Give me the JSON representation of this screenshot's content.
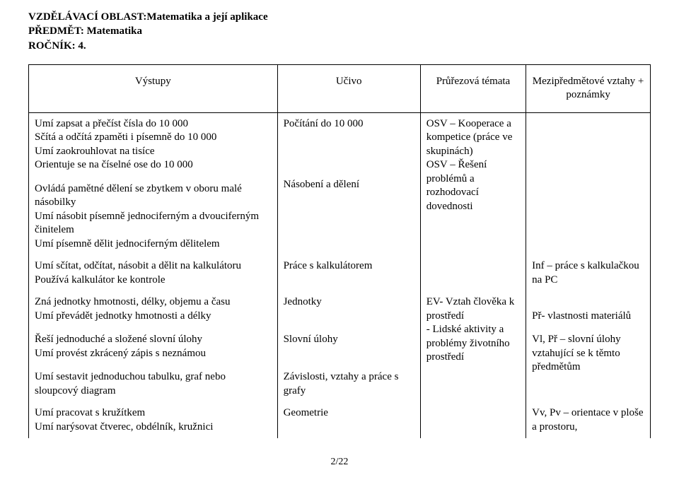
{
  "header": {
    "area_label": "VZDĚLÁVACÍ OBLAST:",
    "area_value": "Matematika a její aplikace",
    "subject_label": "PŘEDMĚT:",
    "subject_value": "Matematika",
    "grade_label": "ROČNÍK:",
    "grade_value": "4."
  },
  "columns": {
    "outcomes": "Výstupy",
    "content": "Učivo",
    "cross_topics": "Průřezová témata",
    "interdisciplinary": "Mezipředmětové vztahy + poznámky"
  },
  "rows": [
    {
      "outcomes": "Umí zapsat a přečíst čísla do 10 000\nSčítá a odčítá zpaměti i písemně do 10 000\nUmí zaokrouhlovat na tisíce\nOrientuje se na číselné ose do 10 000\n\nOvládá pamětné dělení se zbytkem v oboru malé násobilky\nUmí násobit písemně jednociferným a dvouciferným činitelem\nUmí písemně dělit jednociferným dělitelem",
      "content": "Počítání do 10 000\n\n\n\n\nNásobení a dělení",
      "cross": "OSV – Kooperace a kompetice (práce ve skupinách)\nOSV – Řešení problémů a rozhodovací dovednosti",
      "inter": ""
    },
    {
      "outcomes": "Umí sčítat, odčítat, násobit a dělit na kalkulátoru\nPoužívá kalkulátor ke kontrole",
      "content": "Práce s kalkulátorem",
      "cross": "",
      "inter": "Inf – práce s kalkulačkou na PC"
    },
    {
      "outcomes": "Zná jednotky hmotnosti, délky, objemu a času\nUmí převádět jednotky hmotnosti a délky\n\nŘeší jednoduché a složené slovní úlohy\nUmí provést zkrácený zápis s neznámou\n\nUmí sestavit jednoduchou tabulku, graf nebo sloupcový diagram",
      "content": "Jednotky\n\n\nSlovní úlohy\n\n\nZávislosti, vztahy a práce s grafy",
      "cross": "EV- Vztah člověka k prostředí\n- Lidské aktivity a problémy životního prostředí",
      "inter": "\nPř- vlastnosti materiálů\n\nVl, Př – slovní úlohy vztahující se k těmto předmětům"
    },
    {
      "outcomes": "Umí pracovat s kružítkem\nUmí narýsovat čtverec, obdélník, kružnici",
      "content": "Geometrie",
      "cross": "",
      "inter": "Vv, Pv – orientace v ploše a prostoru,"
    }
  ],
  "page_number": "2/22"
}
